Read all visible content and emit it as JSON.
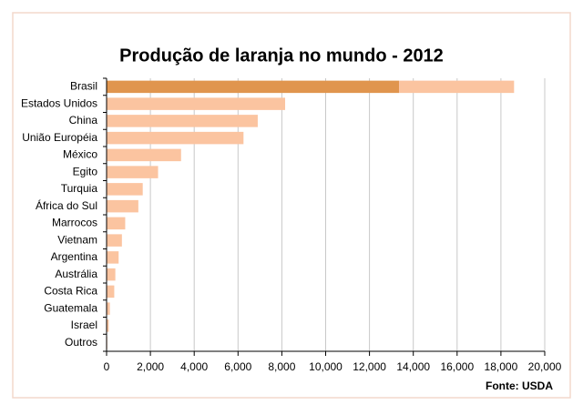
{
  "chart_data": {
    "type": "stacked-barh",
    "title": "Produção de laranja no mundo - 2012",
    "source": "Fonte: USDA",
    "categories": [
      "Brasil",
      "Estados Unidos",
      "China",
      "União Européia",
      "México",
      "Egito",
      "Turquia",
      "África do Sul",
      "Marrocos",
      "Vietnam",
      "Argentina",
      "Austrália",
      "Costa Rica",
      "Guatemala",
      "Israel",
      "Outros"
    ],
    "series": [
      {
        "color": "#e0954e",
        "values": [
          13350,
          0,
          0,
          0,
          0,
          0,
          0,
          0,
          0,
          0,
          0,
          0,
          0,
          0,
          0,
          0
        ]
      },
      {
        "color": "#fbc4a0",
        "values": [
          5250,
          8150,
          6900,
          6250,
          3400,
          2350,
          1650,
          1450,
          850,
          700,
          550,
          400,
          350,
          150,
          100,
          30
        ]
      }
    ],
    "xlim": [
      0,
      20000
    ],
    "xticks": [
      0,
      {
        "value": 2000,
        "label": "2,000"
      },
      {
        "value": 4000,
        "label": "4,000"
      },
      {
        "value": 6000,
        "label": "6,000"
      },
      {
        "value": 8000,
        "label": "8,000"
      },
      {
        "value": 10000,
        "label": "10,000"
      },
      {
        "value": 12000,
        "label": "12,000"
      },
      {
        "value": 14000,
        "label": "14,000"
      },
      {
        "value": 16000,
        "label": "16,000"
      },
      {
        "value": 18000,
        "label": "18,000"
      },
      {
        "value": 20000,
        "label": "20,000"
      }
    ],
    "grid": true
  }
}
